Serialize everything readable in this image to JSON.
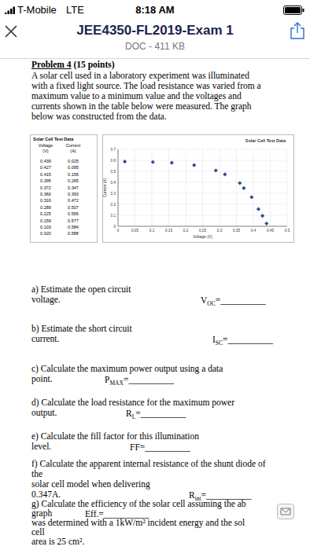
{
  "status_bar": {
    "carrier": "T-Mobile",
    "network": "LTE",
    "time": "8:18 AM"
  },
  "header": {
    "title": "JEE4350-FL2019-Exam 1",
    "subtitle": "DOC - 411 KB"
  },
  "problem": {
    "heading": "Problem 4",
    "points": " (15 points)",
    "paragraph": [
      "A solar cell used in a laboratory experiment was illuminated",
      "with a fixed light source. The load resistance was varied from a",
      "maximum value to a minimum value and the voltages and",
      "currents shown in the table below were measured. The graph",
      "below was constructed from the data."
    ]
  },
  "table": {
    "title": "Solar Cell Test Data",
    "columns": [
      {
        "name": "Voltage",
        "unit": "(V)"
      },
      {
        "name": "Current",
        "unit": "(A)"
      }
    ],
    "rows": [
      [
        "0.439",
        "0.025"
      ],
      [
        "0.427",
        "0.095"
      ],
      [
        "0.415",
        "0.156"
      ],
      [
        "0.395",
        "0.265"
      ],
      [
        "0.372",
        "0.347"
      ],
      [
        "0.360",
        "0.393"
      ],
      [
        "0.316",
        "0.472"
      ],
      [
        "0.289",
        "0.507"
      ],
      [
        "0.225",
        "0.556"
      ],
      [
        "0.159",
        "0.577"
      ],
      [
        "0.103",
        "0.584"
      ],
      [
        "0.020",
        "0.588"
      ]
    ]
  },
  "chart_data": {
    "type": "scatter",
    "title": "Solar Cell Test Data",
    "x_label": "Voltage (V)",
    "y_label": "Current (A)",
    "x": [
      0.439,
      0.427,
      0.415,
      0.395,
      0.372,
      0.36,
      0.316,
      0.289,
      0.225,
      0.159,
      0.103,
      0.02
    ],
    "values": [
      0.025,
      0.095,
      0.156,
      0.265,
      0.347,
      0.393,
      0.472,
      0.507,
      0.556,
      0.577,
      0.584,
      0.588
    ],
    "color": "#2f4f8f",
    "marker": "diamond",
    "xlim": [
      0,
      0.5
    ],
    "xticks": [
      0,
      0.05,
      0.1,
      0.15,
      0.2,
      0.25,
      0.3,
      0.35,
      0.4,
      0.45,
      0.5
    ],
    "ylim": [
      0,
      0.7
    ],
    "yticks": [
      0,
      0.1,
      0.2,
      0.3,
      0.4,
      0.5,
      0.6,
      0.7
    ],
    "grid": true
  },
  "questions": [
    {
      "lines": [
        "a) Estimate the open circuit",
        "voltage."
      ],
      "answer": {
        "symbol": "V",
        "sub": "OC",
        "blank": "=__________"
      }
    },
    {
      "lines": [
        "b) Estimate the short circuit",
        "current."
      ],
      "answer": {
        "symbol": "I",
        "sub": "SC",
        "blank": "=__________"
      }
    },
    {
      "lines": [
        "c) Calculate the maximum power output using a data",
        "point."
      ],
      "answer": {
        "symbol": "P",
        "sub": "MAX",
        "blank": "=__________"
      }
    },
    {
      "lines": [
        "d) Calculate the load resistance for the maximum power",
        "output."
      ],
      "answer": {
        "symbol": "R",
        "sub": "L",
        "blank": "=__________"
      }
    },
    {
      "lines": [
        "e) Calculate the fill factor for this illumination",
        "level."
      ],
      "answer": {
        "symbol": "FF",
        "blank": "=__________"
      }
    },
    {
      "lines": [
        "f) Calculate the apparent internal resistance of the shunt diode of",
        "the",
        "solar cell model when delivering",
        "0.347A."
      ],
      "answer": {
        "symbol": "R",
        "sub": "int",
        "blank": "=__________"
      }
    },
    {
      "lines": [
        "g) Calculate the efficiency of the solar cell assuming the ab",
        "graph",
        "was determined with a 1kW/m² incident energy and the sol",
        "cell",
        "area is 25 cm²."
      ],
      "answer": {
        "symbol": "Eff.",
        "blank": "=__________"
      }
    }
  ]
}
